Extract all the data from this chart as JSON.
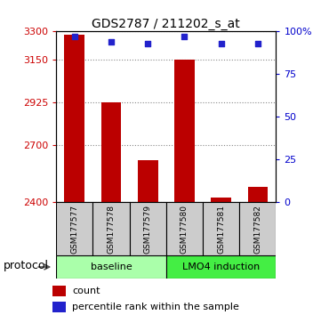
{
  "title": "GDS2787 / 211202_s_at",
  "samples": [
    "GSM177577",
    "GSM177578",
    "GSM177579",
    "GSM177580",
    "GSM177581",
    "GSM177582"
  ],
  "counts": [
    3285,
    2925,
    2620,
    3150,
    2420,
    2480
  ],
  "percentile_ranks": [
    97,
    94,
    93,
    97,
    93,
    93
  ],
  "ylim_left": [
    2400,
    3300
  ],
  "ylim_right": [
    0,
    100
  ],
  "yticks_left": [
    2400,
    2700,
    2925,
    3150,
    3300
  ],
  "yticks_right": [
    0,
    25,
    50,
    75,
    100
  ],
  "bar_color": "#bb0000",
  "marker_color": "#2222cc",
  "bar_width": 0.55,
  "group_baseline_label": "baseline",
  "group_baseline_color": "#aaffaa",
  "group_lmo4_label": "LMO4 induction",
  "group_lmo4_color": "#44ee44",
  "sample_box_color": "#cccccc",
  "protocol_label": "protocol",
  "legend_count_label": "count",
  "legend_percentile_label": "percentile rank within the sample",
  "left_axis_color": "#cc0000",
  "right_axis_color": "#0000cc",
  "grid_color": "#888888",
  "title_fontsize": 10,
  "tick_fontsize": 8,
  "sample_fontsize": 6.5,
  "protocol_fontsize": 9,
  "legend_fontsize": 8,
  "group_label_fontsize": 8
}
